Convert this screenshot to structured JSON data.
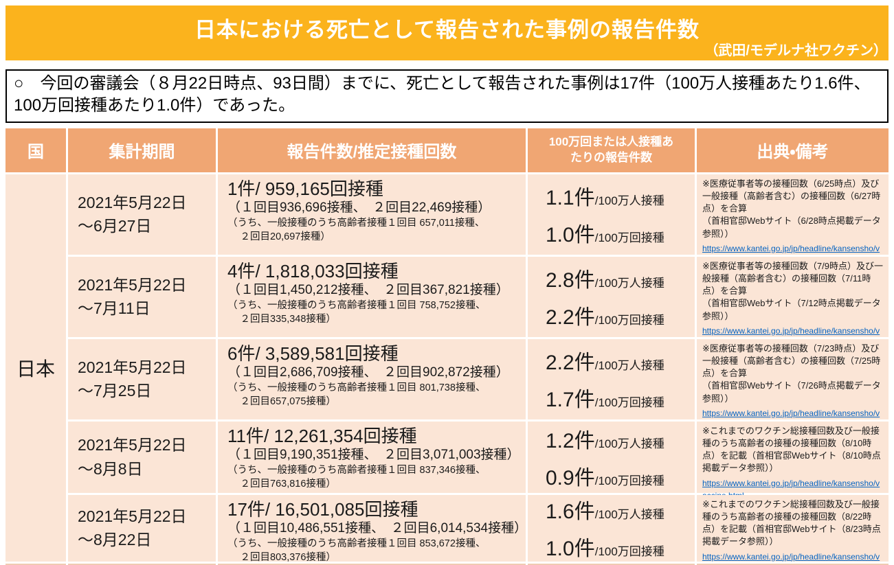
{
  "banner": {
    "title": "日本における死亡として報告された事例の報告件数",
    "subtitle": "（武田/モデルナ社ワクチン）"
  },
  "summary": {
    "text": "○　今回の審議会（８月22日時点、93日間）までに、死亡として報告された事例は17件（100万人接種あたり1.6件、100万回接種あたり1.0件）であった。"
  },
  "colors": {
    "banner": "#FBB31D",
    "table_header": "#F0A673",
    "cell": "#FBE5D6",
    "link": "#0563C1"
  },
  "table": {
    "headers": {
      "country": "国",
      "period": "集計期間",
      "reports": "報告件数/推定接種回数",
      "rate": "100万回または人接種あ\nたりの報告件数",
      "source": "出典・備考"
    },
    "country": "日本",
    "rows": [
      {
        "period_line1": "2021年5月22日",
        "period_line2": "〜6月27日",
        "report_main": "1件/ 959,165回接種",
        "report_detail1": "（１回目936,696接種、　２回目22,469接種）",
        "report_detail2": "（うち、一般接種のうち高齢者接種１回目 657,011接種、",
        "report_detail3": "　２回目20,697接種）",
        "rate_person_value": "1.1件",
        "rate_person_unit": "/100万人接種",
        "rate_dose_value": "1.0件",
        "rate_dose_unit": "/100万回接種",
        "source_text1": "※医療従事者等の接種回数（6/25時点）及び一般接種（高齢者含む）の接種回数（6/27時点）を合算",
        "source_text2": "（首相官邸Webサイト（6/28時点掲載データ参照））",
        "source_link": "https://www.kantei.go.jp/jp/headline/kansensho/vaccine.html"
      },
      {
        "period_line1": "2021年5月22日",
        "period_line2": "〜7月11日",
        "report_main": "4件/ 1,818,033回接種",
        "report_detail1": "（１回目1,450,212接種、　２回目367,821接種）",
        "report_detail2": "（うち、一般接種のうち高齢者接種１回目 758,752接種、",
        "report_detail3": "　２回目335,348接種）",
        "rate_person_value": "2.8件",
        "rate_person_unit": "/100万人接種",
        "rate_dose_value": "2.2件",
        "rate_dose_unit": "/100万回接種",
        "source_text1": "※医療従事者等の接種回数（7/9時点）及び一般接種（高齢者含む）の接種回数（7/11時点）を合算",
        "source_text2": "（首相官邸Webサイト（7/12時点掲載データ参照））",
        "source_link": "https://www.kantei.go.jp/jp/headline/kansensho/vaccine.html"
      },
      {
        "period_line1": "2021年5月22日",
        "period_line2": "〜7月25日",
        "report_main": "6件/ 3,589,581回接種",
        "report_detail1": "（１回目2,686,709接種、　２回目902,872接種）",
        "report_detail2": "（うち、一般接種のうち高齢者接種１回目 801,738接種、",
        "report_detail3": "　２回目657,075接種）",
        "rate_person_value": "2.2件",
        "rate_person_unit": "/100万人接種",
        "rate_dose_value": "1.7件",
        "rate_dose_unit": "/100万回接種",
        "source_text1": "※医療従事者等の接種回数（7/23時点）及び一般接種（高齢者含む）の接種回数（7/25時点）を合算",
        "source_text2": "（首相官邸Webサイト（7/26時点掲載データ参照））",
        "source_link": "https://www.kantei.go.jp/jp/headline/kansensho/vaccine.html"
      },
      {
        "period_line1": "2021年5月22日",
        "period_line2": "〜8月8日",
        "report_main": "11件/ 12,261,354回接種",
        "report_detail1": "（１回目9,190,351接種、　２回目3,071,003接種）",
        "report_detail2": "（うち、一般接種のうち高齢者接種１回目 837,346接種、",
        "report_detail3": "　２回目763,816接種）",
        "rate_person_value": "1.2件",
        "rate_person_unit": "/100万人接種",
        "rate_dose_value": "0.9件",
        "rate_dose_unit": "/100万回接種",
        "source_text1": "※これまでのワクチン総接種回数及び一般接種のうち高齢者の接種の接種回数（8/10時点）を記載（首相官邸Webサイト（8/10時点掲載データ参照））",
        "source_text2": "",
        "source_link": "https://www.kantei.go.jp/jp/headline/kansensho/vaccine.html"
      },
      {
        "period_line1": "2021年5月22日",
        "period_line2": "〜8月22日",
        "report_main": "17件/ 16,501,085回接種",
        "report_detail1": "（１回目10,486,551接種、　２回目6,014,534接種）",
        "report_detail2": "（うち、一般接種のうち高齢者接種１回目 853,672接種、",
        "report_detail3": "　２回目803,376接種）",
        "rate_person_value": "1.6件",
        "rate_person_unit": "/100万人接種",
        "rate_dose_value": "1.0件",
        "rate_dose_unit": "/100万回接種",
        "source_text1": "※これまでのワクチン総接種回数及び一般接種のうち高齢者の接種の接種回数（8/22時点）を記載（首相官邸Webサイト（8/23時点掲載データ参照））",
        "source_text2": "",
        "source_link": "https://www.kantei.go.jp/jp/headline/kansensho/vaccine.html"
      }
    ]
  }
}
